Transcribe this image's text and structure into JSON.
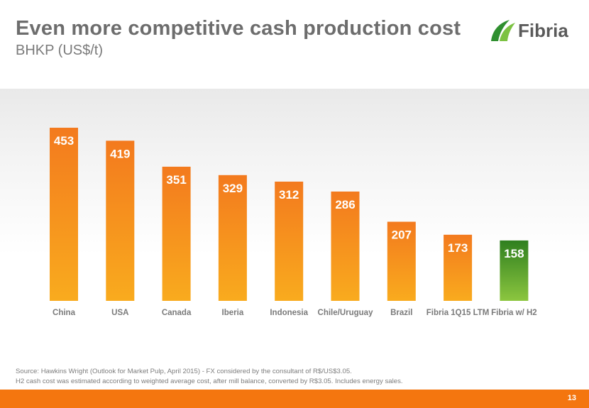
{
  "header": {
    "title": "Even more competitive cash production cost",
    "subtitle": "BHKP (US$/t)"
  },
  "logo": {
    "text": "Fibria"
  },
  "chart_data": {
    "type": "bar",
    "title": "",
    "xlabel": "",
    "ylabel": "",
    "categories": [
      "China",
      "USA",
      "Canada",
      "Iberia",
      "Indonesia",
      "Chile/Uruguay",
      "Brazil",
      "Fibria 1Q15 LTM",
      "Fibria w/ H2"
    ],
    "values": [
      453,
      419,
      351,
      329,
      312,
      286,
      207,
      173,
      158
    ],
    "ylim": [
      0,
      500
    ],
    "grid": false,
    "legend": "none",
    "colors": {
      "bar_top": "#f37a1e",
      "bar_bottom": "#f9ab1e",
      "highlight_top": "#2f7f1f",
      "highlight_bottom": "#8cc63f"
    },
    "highlight_index": 8
  },
  "footer": {
    "source_line1": "Source: Hawkins Wright (Outlook for Market Pulp, April 2015) - FX considered by the consultant of R$/US$3.05.",
    "source_line2": "H2 cash cost was estimated according to weighted average cost, after mill balance, converted by R$3.05. Includes energy sales.",
    "page_number": "13"
  }
}
